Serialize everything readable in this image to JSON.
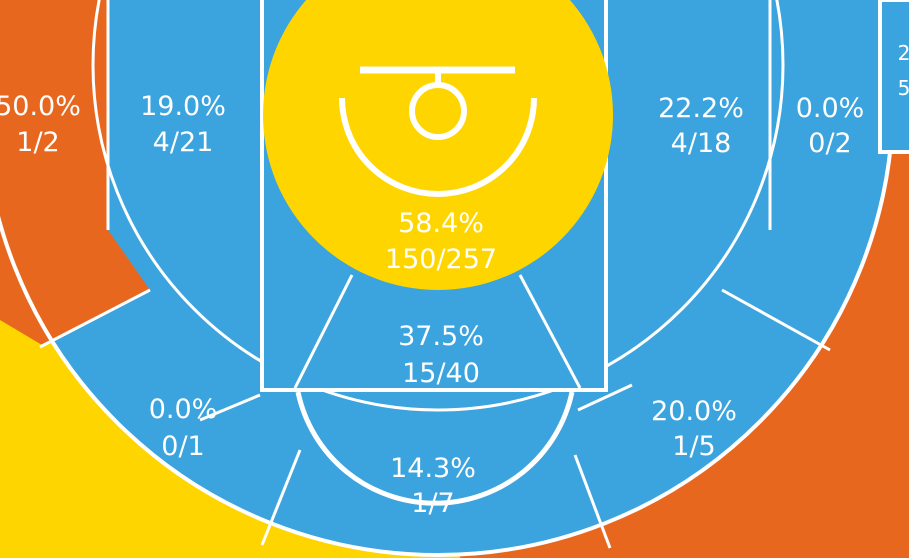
{
  "colors": {
    "cold": "#3ba3dd",
    "hot": "#ffd500",
    "hot_dark": "#e8671f",
    "lines": "#ffffff"
  },
  "zones": [
    {
      "id": "restricted-area",
      "pct": "58.4%",
      "made_att": "150/257",
      "tier": "hot"
    },
    {
      "id": "paint-non-ra",
      "pct": "37.5%",
      "made_att": "15/40",
      "tier": "cold"
    },
    {
      "id": "mid-range-top-key",
      "pct": "14.3%",
      "made_att": "1/7",
      "tier": "cold"
    },
    {
      "id": "mid-range-left-elbow",
      "pct": "0.0%",
      "made_att": "0/1",
      "tier": "cold"
    },
    {
      "id": "mid-range-right-elbow",
      "pct": "20.0%",
      "made_att": "1/5",
      "tier": "cold"
    },
    {
      "id": "mid-range-left-baseline",
      "pct": "19.0%",
      "made_att": "4/21",
      "tier": "cold"
    },
    {
      "id": "mid-range-right-baseline",
      "pct": "22.2%",
      "made_att": "4/18",
      "tier": "cold"
    },
    {
      "id": "left-corner-three",
      "pct": "50.0%",
      "made_att": "1/2",
      "tier": "hot-dark"
    },
    {
      "id": "right-corner-three",
      "pct": "0.0%",
      "made_att": "0/2",
      "tier": "cold"
    },
    {
      "id": "right-edge-partial",
      "pct": "2",
      "made_att": "5",
      "tier": "cold"
    }
  ]
}
